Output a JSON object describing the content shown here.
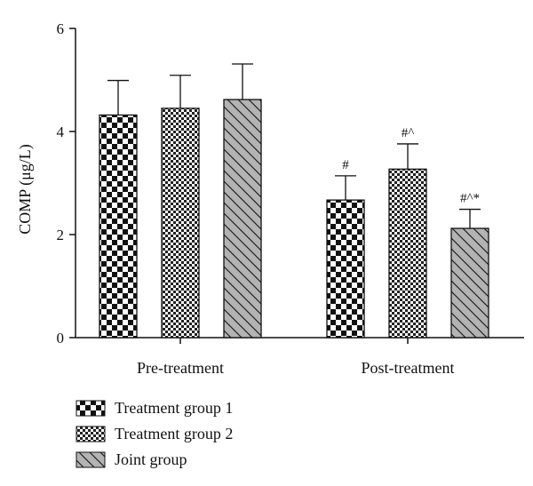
{
  "chart_data": {
    "type": "bar",
    "title": "",
    "xlabel": "",
    "ylabel": "COMP (μg/L)",
    "ylim": [
      0,
      6
    ],
    "yticks": [
      "0",
      "2",
      "4",
      "6"
    ],
    "categories": [
      "Pre-treatment",
      "Post-treatment"
    ],
    "legend_position": "bottom-left",
    "grid": false,
    "series": [
      {
        "name": "Treatment group 1",
        "pattern": "checker-coarse",
        "values": [
          4.32,
          2.67
        ],
        "errors": [
          0.67,
          0.47
        ],
        "annotations": [
          "",
          "#"
        ]
      },
      {
        "name": "Treatment group 2",
        "pattern": "checker-fine",
        "values": [
          4.45,
          3.27
        ],
        "errors": [
          0.64,
          0.49
        ],
        "annotations": [
          "",
          "#^"
        ]
      },
      {
        "name": "Joint group",
        "pattern": "diagonal-hatch",
        "values": [
          4.62,
          2.12
        ],
        "errors": [
          0.69,
          0.37
        ],
        "annotations": [
          "",
          "#^*"
        ]
      }
    ]
  },
  "colors": {
    "axis": "#111111",
    "checker_dark": "#111111",
    "checker_light": "#ffffff",
    "hatch_fill": "#b3b3b3",
    "hatch_line": "#222222"
  }
}
